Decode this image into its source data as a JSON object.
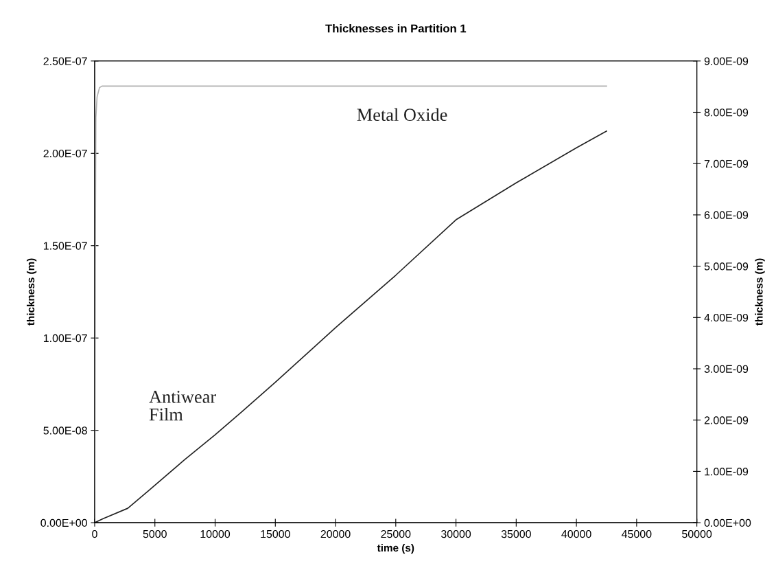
{
  "chart_data": {
    "type": "line",
    "title": "Thicknesses in Partition 1",
    "xlabel": "time (s)",
    "ylabel": "thickness (m)",
    "y2label": "thickness (m)",
    "xlim": [
      0,
      50000
    ],
    "xticks": [
      0,
      5000,
      10000,
      15000,
      20000,
      25000,
      30000,
      35000,
      40000,
      45000,
      50000
    ],
    "ylim": [
      0,
      2.5e-07
    ],
    "yticks": [
      {
        "value": 0,
        "label": "0.00E+00"
      },
      {
        "value": 5e-08,
        "label": "5.00E-08"
      },
      {
        "value": 1e-07,
        "label": "1.00E-07"
      },
      {
        "value": 1.5e-07,
        "label": "1.50E-07"
      },
      {
        "value": 2e-07,
        "label": "2.00E-07"
      },
      {
        "value": 2.5e-07,
        "label": "2.50E-07"
      }
    ],
    "y2lim": [
      0,
      9e-09
    ],
    "y2ticks": [
      {
        "value": 0,
        "label": "0.00E+00"
      },
      {
        "value": 1e-09,
        "label": "1.00E-09"
      },
      {
        "value": 2e-09,
        "label": "2.00E-09"
      },
      {
        "value": 3e-09,
        "label": "3.00E-09"
      },
      {
        "value": 4e-09,
        "label": "4.00E-09"
      },
      {
        "value": 5e-09,
        "label": "5.00E-09"
      },
      {
        "value": 6e-09,
        "label": "6.00E-09"
      },
      {
        "value": 7e-09,
        "label": "7.00E-09"
      },
      {
        "value": 8e-09,
        "label": "8.00E-09"
      },
      {
        "value": 9e-09,
        "label": "9.00E-09"
      }
    ],
    "grid": false,
    "legend": false,
    "marker": "none",
    "line_style": "solid",
    "series": [
      {
        "name": "Antiwear\nFilm",
        "color": "#222222",
        "axis": "y",
        "x": [
          0,
          700,
          2750,
          4450,
          7450,
          10000,
          12200,
          15000,
          20000,
          25000,
          30000,
          35000,
          40000,
          42500
        ],
        "values": [
          0,
          2.2e-09,
          7.8e-09,
          1.72e-08,
          3.4e-08,
          4.76e-08,
          6e-08,
          7.6e-08,
          1.056e-07,
          1.34e-07,
          1.64e-07,
          1.84e-07,
          2.03e-07,
          2.12e-07
        ]
      },
      {
        "name": "Metal Oxide",
        "color": "#b0b0b0",
        "axis": "y2",
        "x": [
          0,
          50,
          100,
          200,
          400,
          600,
          42500
        ],
        "values": [
          0,
          5e-09,
          7.9e-09,
          8.3e-09,
          8.48e-09,
          8.51e-09,
          8.51e-09
        ]
      }
    ]
  }
}
